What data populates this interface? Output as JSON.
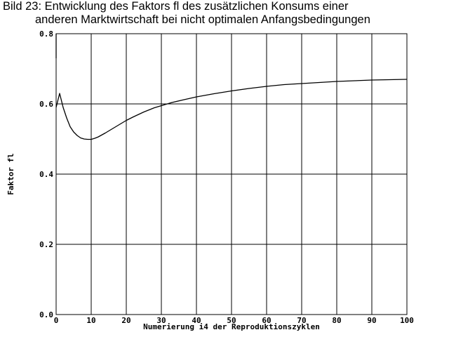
{
  "title_line1": "Bild 23: Entwicklung des Faktors fl des zusätzlichen Konsums einer",
  "title_line2": "anderen Marktwirtschaft bei nicht optimalen Anfangsbedingungen",
  "chart_data": {
    "type": "line",
    "xlabel": "Numerierung i4 der Reproduktionszyklen",
    "ylabel": "Faktor fl",
    "xlim": [
      0,
      100
    ],
    "ylim": [
      0.0,
      0.8
    ],
    "xticks": [
      0,
      10,
      20,
      30,
      40,
      50,
      60,
      70,
      80,
      90,
      100
    ],
    "yticks": [
      "0.0",
      "0.2",
      "0.4",
      "0.6",
      "0.8"
    ],
    "grid": true,
    "colors": {
      "line": "#000000",
      "grid": "#000000",
      "background": "#ffffff"
    },
    "series": [
      {
        "x": [
          0,
          0.5,
          1,
          1.5,
          2,
          3,
          4,
          5,
          6,
          7,
          8,
          9,
          10,
          11,
          12,
          14,
          16,
          18,
          20,
          22,
          25,
          28,
          30,
          33,
          36,
          40,
          45,
          50,
          55,
          60,
          65,
          70,
          75,
          80,
          85,
          90,
          95,
          100
        ],
        "y": [
          0.59,
          0.61,
          0.63,
          0.61,
          0.59,
          0.56,
          0.535,
          0.52,
          0.51,
          0.503,
          0.5,
          0.499,
          0.499,
          0.502,
          0.506,
          0.517,
          0.529,
          0.541,
          0.553,
          0.563,
          0.577,
          0.589,
          0.595,
          0.604,
          0.611,
          0.62,
          0.629,
          0.637,
          0.644,
          0.65,
          0.655,
          0.658,
          0.661,
          0.664,
          0.666,
          0.668,
          0.669,
          0.67
        ]
      },
      {
        "x": [
          0,
          0
        ],
        "y": [
          0.73,
          0.8
        ]
      }
    ]
  }
}
